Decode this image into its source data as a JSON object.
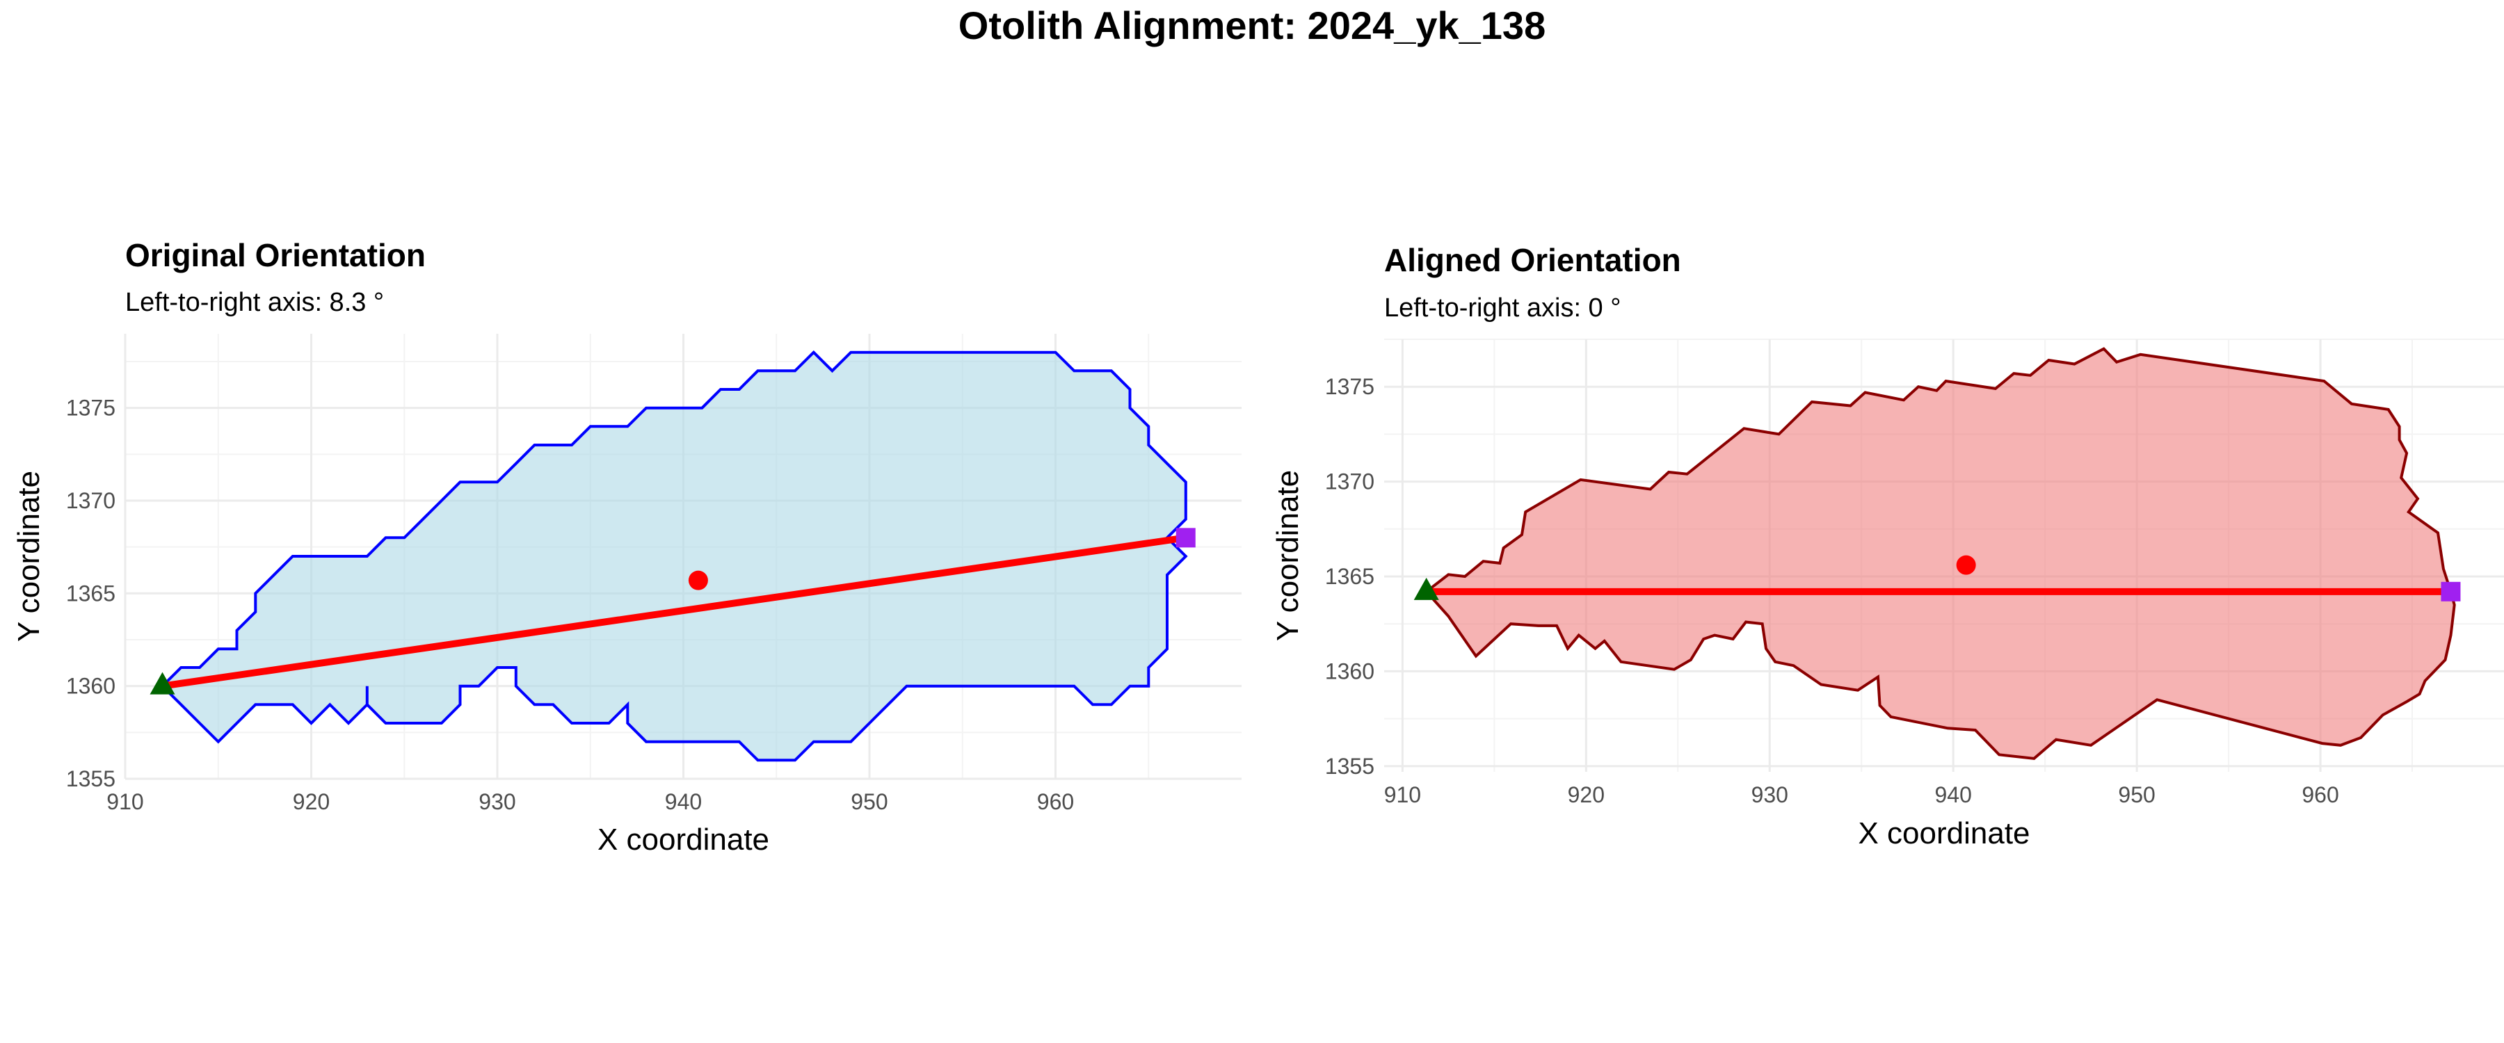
{
  "figure": {
    "title": "Otolith Alignment: 2024_yk_138"
  },
  "chart_data": [
    {
      "type": "scatter",
      "title": "Original Orientation",
      "subtitle": "Left-to-right axis: 8.3 °",
      "xlabel": "X coordinate",
      "ylabel": "Y coordinate",
      "xlim": [
        910,
        970
      ],
      "ylim": [
        1355,
        1379
      ],
      "xticks": [
        910,
        920,
        930,
        940,
        950,
        960
      ],
      "yticks": [
        1355,
        1360,
        1365,
        1370,
        1375
      ],
      "grid": true,
      "colors": {
        "fill": "#add8e6",
        "outline": "#0000ff",
        "axis_line": "#ff0000",
        "centroid": "#ff0000",
        "left_point": "#006400",
        "right_point": "#a020f0"
      },
      "outline": [
        [
          912,
          1360
        ],
        [
          913,
          1361
        ],
        [
          914,
          1361
        ],
        [
          915,
          1362
        ],
        [
          916,
          1362
        ],
        [
          916,
          1363
        ],
        [
          917,
          1364
        ],
        [
          917,
          1365
        ],
        [
          918,
          1366
        ],
        [
          919,
          1367
        ],
        [
          920,
          1367
        ],
        [
          921,
          1367
        ],
        [
          923,
          1367
        ],
        [
          924,
          1368
        ],
        [
          925,
          1368
        ],
        [
          926,
          1369
        ],
        [
          927,
          1370
        ],
        [
          928,
          1371
        ],
        [
          929,
          1371
        ],
        [
          930,
          1371
        ],
        [
          931,
          1372
        ],
        [
          932,
          1373
        ],
        [
          933,
          1373
        ],
        [
          934,
          1373
        ],
        [
          935,
          1374
        ],
        [
          936,
          1374
        ],
        [
          937,
          1374
        ],
        [
          938,
          1375
        ],
        [
          939,
          1375
        ],
        [
          940,
          1375
        ],
        [
          941,
          1375
        ],
        [
          942,
          1376
        ],
        [
          943,
          1376
        ],
        [
          944,
          1377
        ],
        [
          945,
          1377
        ],
        [
          946,
          1377
        ],
        [
          947,
          1378
        ],
        [
          948,
          1377
        ],
        [
          949,
          1378
        ],
        [
          950,
          1378
        ],
        [
          952,
          1378
        ],
        [
          954,
          1378
        ],
        [
          956,
          1378
        ],
        [
          958,
          1378
        ],
        [
          960,
          1378
        ],
        [
          961,
          1377
        ],
        [
          963,
          1377
        ],
        [
          964,
          1376
        ],
        [
          964,
          1375
        ],
        [
          965,
          1374
        ],
        [
          965,
          1373
        ],
        [
          966,
          1372
        ],
        [
          967,
          1371
        ],
        [
          967,
          1369
        ],
        [
          966,
          1368
        ],
        [
          967,
          1367
        ],
        [
          966,
          1366
        ],
        [
          966,
          1364
        ],
        [
          966,
          1362
        ],
        [
          965,
          1361
        ],
        [
          965,
          1360
        ],
        [
          964,
          1360
        ],
        [
          963,
          1359
        ],
        [
          962,
          1359
        ],
        [
          961,
          1360
        ],
        [
          960,
          1360
        ],
        [
          958,
          1360
        ],
        [
          956,
          1360
        ],
        [
          954,
          1360
        ],
        [
          952,
          1360
        ],
        [
          951,
          1359
        ],
        [
          950,
          1358
        ],
        [
          949,
          1357
        ],
        [
          948,
          1357
        ],
        [
          947,
          1357
        ],
        [
          946,
          1356
        ],
        [
          945,
          1356
        ],
        [
          944,
          1356
        ],
        [
          943,
          1357
        ],
        [
          941,
          1357
        ],
        [
          939,
          1357
        ],
        [
          938,
          1357
        ],
        [
          937,
          1358
        ],
        [
          937,
          1359
        ],
        [
          936,
          1358
        ],
        [
          935,
          1358
        ],
        [
          934,
          1358
        ],
        [
          933,
          1359
        ],
        [
          932,
          1359
        ],
        [
          931,
          1360
        ],
        [
          931,
          1361
        ],
        [
          930,
          1361
        ],
        [
          929,
          1360
        ],
        [
          928,
          1360
        ],
        [
          928,
          1359
        ],
        [
          927,
          1358
        ],
        [
          926,
          1358
        ],
        [
          925,
          1358
        ],
        [
          924,
          1358
        ],
        [
          923,
          1359
        ],
        [
          923,
          1360
        ],
        [
          923,
          1359
        ],
        [
          922,
          1358
        ],
        [
          921,
          1359
        ],
        [
          920,
          1358
        ],
        [
          919,
          1359
        ],
        [
          918,
          1359
        ],
        [
          917,
          1359
        ],
        [
          916,
          1358
        ],
        [
          915,
          1357
        ],
        [
          914,
          1358
        ],
        [
          913,
          1359
        ]
      ],
      "axis_segment": {
        "start": [
          912,
          1360
        ],
        "end": [
          967,
          1368
        ]
      },
      "centroid": [
        940.8,
        1365.7
      ],
      "left_point": [
        912,
        1360
      ],
      "right_point": [
        967,
        1368
      ]
    },
    {
      "type": "scatter",
      "title": "Aligned Orientation",
      "subtitle": "Left-to-right axis: 0 °",
      "xlabel": "X coordinate",
      "ylabel": "Y coordinate",
      "xlim": [
        909,
        970
      ],
      "ylim": [
        1354.7,
        1377.5
      ],
      "xticks": [
        910,
        920,
        930,
        940,
        950,
        960
      ],
      "yticks": [
        1355,
        1360,
        1365,
        1370,
        1375
      ],
      "grid": true,
      "colors": {
        "fill": "#f08080",
        "outline": "#8b0000",
        "axis_line": "#ff0000",
        "centroid": "#ff0000",
        "left_point": "#006400",
        "right_point": "#a020f0"
      },
      "outline": [
        [
          911.3,
          1364.2
        ],
        [
          912.5,
          1365.1
        ],
        [
          913.4,
          1365
        ],
        [
          914.4,
          1365.8
        ],
        [
          915.3,
          1365.7
        ],
        [
          915.5,
          1366.5
        ],
        [
          916.5,
          1367.2
        ],
        [
          916.7,
          1368.4
        ],
        [
          919.7,
          1370.1
        ],
        [
          923.5,
          1369.6
        ],
        [
          924.5,
          1370.5
        ],
        [
          925.5,
          1370.4
        ],
        [
          928.6,
          1372.8
        ],
        [
          930.5,
          1372.5
        ],
        [
          932.3,
          1374.2
        ],
        [
          934.4,
          1374
        ],
        [
          935.2,
          1374.7
        ],
        [
          937.3,
          1374.3
        ],
        [
          938.1,
          1375
        ],
        [
          939.1,
          1374.8
        ],
        [
          939.6,
          1375.3
        ],
        [
          942.3,
          1374.9
        ],
        [
          943.3,
          1375.7
        ],
        [
          944.2,
          1375.6
        ],
        [
          945.2,
          1376.4
        ],
        [
          946.6,
          1376.2
        ],
        [
          948.2,
          1377
        ],
        [
          948.9,
          1376.3
        ],
        [
          950.2,
          1376.7
        ],
        [
          960.2,
          1375.3
        ],
        [
          961.7,
          1374.1
        ],
        [
          963.7,
          1373.8
        ],
        [
          964.3,
          1372.9
        ],
        [
          964.3,
          1372.2
        ],
        [
          964.7,
          1371.5
        ],
        [
          964.4,
          1370.2
        ],
        [
          965.3,
          1369.1
        ],
        [
          964.8,
          1368.4
        ],
        [
          966.4,
          1367.3
        ],
        [
          966.7,
          1365.4
        ],
        [
          967.1,
          1364.2
        ],
        [
          967.3,
          1363.5
        ],
        [
          967.1,
          1361.9
        ],
        [
          966.8,
          1360.6
        ],
        [
          966.1,
          1359.9
        ],
        [
          965.7,
          1359.5
        ],
        [
          965.4,
          1358.8
        ],
        [
          964.7,
          1358.4
        ],
        [
          963.4,
          1357.7
        ],
        [
          962.2,
          1356.5
        ],
        [
          961.1,
          1356.1
        ],
        [
          960.1,
          1356.2
        ],
        [
          951.1,
          1358.5
        ],
        [
          947.5,
          1356.1
        ],
        [
          945.6,
          1356.4
        ],
        [
          944.4,
          1355.4
        ],
        [
          942.5,
          1355.6
        ],
        [
          941.2,
          1356.9
        ],
        [
          939.7,
          1357
        ],
        [
          936.6,
          1357.6
        ],
        [
          936,
          1358.2
        ],
        [
          935.9,
          1359.7
        ],
        [
          934.8,
          1359
        ],
        [
          932.8,
          1359.3
        ],
        [
          931.3,
          1360.3
        ],
        [
          930.3,
          1360.5
        ],
        [
          929.8,
          1361.2
        ],
        [
          929.6,
          1362.5
        ],
        [
          928.7,
          1362.6
        ],
        [
          928,
          1361.7
        ],
        [
          927,
          1361.9
        ],
        [
          926.4,
          1361.7
        ],
        [
          925.7,
          1360.6
        ],
        [
          924.8,
          1360.1
        ],
        [
          921.9,
          1360.5
        ],
        [
          921,
          1361.6
        ],
        [
          920.5,
          1361.2
        ],
        [
          919.6,
          1361.9
        ],
        [
          919,
          1361.2
        ],
        [
          918.4,
          1362.4
        ],
        [
          917.4,
          1362.4
        ],
        [
          915.9,
          1362.5
        ],
        [
          914,
          1360.8
        ],
        [
          912.5,
          1362.9
        ]
      ],
      "axis_segment": {
        "start": [
          911.3,
          1364.2
        ],
        "end": [
          967.1,
          1364.2
        ]
      },
      "centroid": [
        940.7,
        1365.6
      ],
      "left_point": [
        911.3,
        1364.2
      ],
      "right_point": [
        967.1,
        1364.2
      ]
    }
  ]
}
